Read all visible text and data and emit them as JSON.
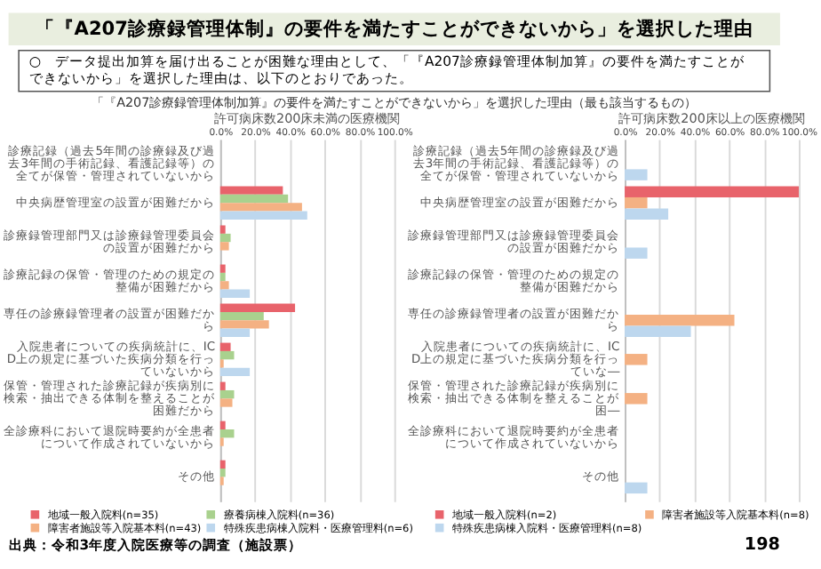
{
  "chart_data": [
    {
      "type": "bar",
      "orientation": "horizontal",
      "title": "許可病床数200床未満の医療機関",
      "annotations": [
        "「『A207診療録管理体制』の要件を満たすことができないから」を選択した理由",
        "○　データ提出加算を届け出ることが困難な理由として、「『A207診療録管理体制加算』の要件を満たすことができないから」を選択した理由は、以下のとおりであった。",
        "「『A207診療録管理体制加算』の要件を満たすことができないから」を選択した理由（最も該当するもの）",
        "出典：令和3年度入院医療等の調査（施設票）"
      ],
      "categories": [
        "診療記録（過去5年間の診療録及び過去3年間の手術記録、看護記録等）の全てが保管・管理されていないから",
        "中央病歴管理室の設置が困難だから",
        "診療録管理部門又は診療録管理委員会の設置が困難だから",
        "診療記録の保管・管理のための規定の整備が困難だから",
        "専任の診療録管理者の設置が困難だから",
        "入院患者についての疾病統計に、ICD上の規定に基づいた疾病分類を行っていないから",
        "保管・管理された診療記録が疾病別に検索・抽出できる体制を整えることが困難だから",
        "全診療科において退院時要約が全患者について作成されていないから",
        "その他"
      ],
      "series": [
        {
          "name": "地域一般入院料(n=35)",
          "color": "#e8636b",
          "values": [
            0,
            36,
            3,
            3,
            43,
            6,
            3,
            3,
            3
          ]
        },
        {
          "name": "療養病棟入院料(n=36)",
          "color": "#a9d18e",
          "values": [
            0,
            39,
            6,
            3,
            25,
            8,
            8,
            8,
            3
          ]
        },
        {
          "name": "障害者施設等入院基本料(n=43)",
          "color": "#f4b183",
          "values": [
            0,
            47,
            5,
            5,
            28,
            2,
            7,
            2,
            2
          ]
        },
        {
          "name": "特殊疾患病棟入院料・医療管理料(n=6)",
          "color": "#bdd7ee",
          "values": [
            0,
            50,
            0,
            17,
            17,
            17,
            0,
            0,
            0
          ]
        }
      ],
      "xlim": [
        0,
        100
      ],
      "xticks": [
        {
          "value": 0,
          "label": "0.0%"
        },
        {
          "value": 20,
          "label": "20.0%"
        },
        {
          "value": 40,
          "label": "40.0%"
        },
        {
          "value": 60,
          "label": "60.0%"
        },
        {
          "value": 80,
          "label": "80.0%"
        },
        {
          "value": 100,
          "label": "100.0%"
        }
      ],
      "grid": "x",
      "legend": "bottom"
    },
    {
      "type": "bar",
      "orientation": "horizontal",
      "title": "許可病床数200床以上の医療機関",
      "annotations": [
        "198"
      ],
      "categories": [
        "診療記録（過去5年間の診療録及び過去3年間の手術記録、看護記録等）の全てが保管・管理されていないから",
        "中央病歴管理室の設置が困難だから",
        "診療録管理部門又は診療録管理委員会の設置が困難だから",
        "診療記録の保管・管理のための規定の整備が困難だから",
        "専任の診療録管理者の設置が困難だから",
        "入院患者についての疾病統計に、ICD上の規定に基づいた疾病分類を行っていな―",
        "保管・管理された診療記録が疾病別に検索・抽出できる体制を整えることが困―",
        "全診療科において退院時要約が全患者について作成されていないから",
        "その他"
      ],
      "series": [
        {
          "name": "地域一般入院料(n=2)",
          "color": "#e8636b",
          "values": [
            0,
            100,
            0,
            0,
            0,
            0,
            0,
            0,
            0
          ]
        },
        {
          "name": "障害者施設等入院基本料(n=8)",
          "color": "#f4b183",
          "values": [
            0,
            13,
            0,
            0,
            63,
            13,
            13,
            0,
            0
          ]
        },
        {
          "name": "特殊疾患病棟入院料・医療管理料(n=8)",
          "color": "#bdd7ee",
          "values": [
            13,
            25,
            13,
            0,
            38,
            0,
            0,
            0,
            13
          ]
        }
      ],
      "xlim": [
        0,
        100
      ],
      "xticks": [
        {
          "value": 0,
          "label": "0.0%"
        },
        {
          "value": 20,
          "label": "20.0%"
        },
        {
          "value": 40,
          "label": "40.0%"
        },
        {
          "value": 60,
          "label": "60.0%"
        },
        {
          "value": 80,
          "label": "80.0%"
        },
        {
          "value": 100,
          "label": "100.0%"
        }
      ],
      "grid": "x",
      "legend": "bottom"
    }
  ]
}
